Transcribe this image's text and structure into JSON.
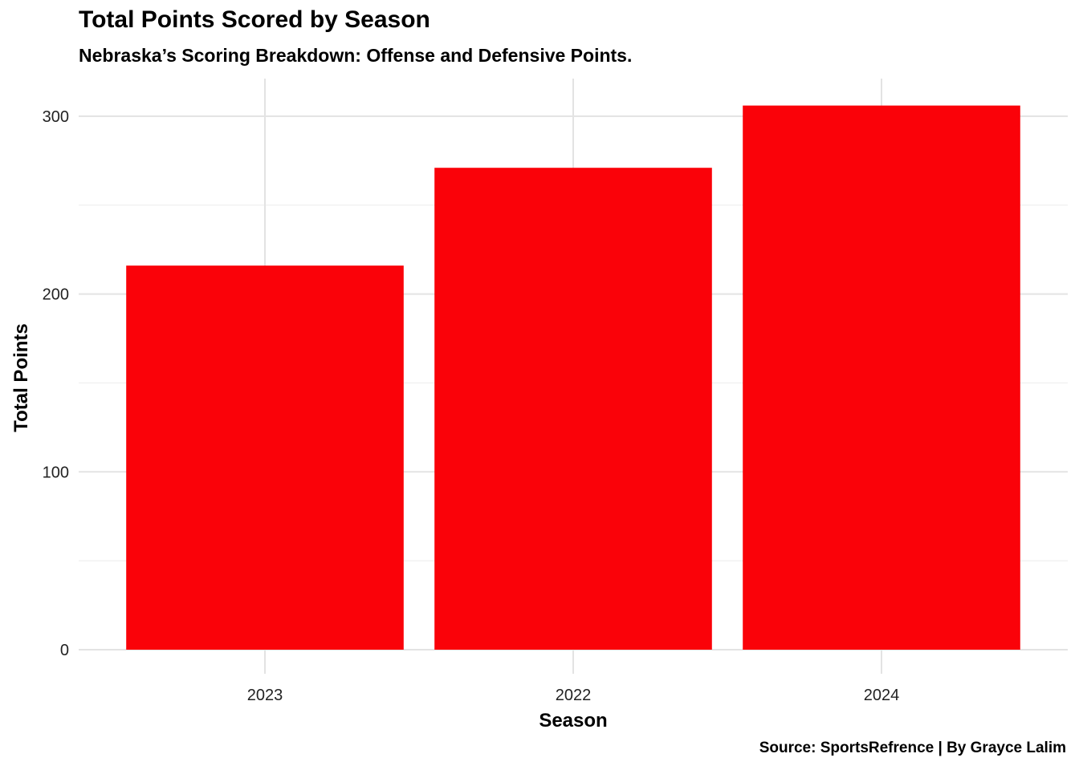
{
  "chart_data": {
    "type": "bar",
    "title": "Total Points Scored by Season",
    "subtitle": "Nebraska’s Scoring Breakdown: Offense and Defensive Points.",
    "caption": "Source: SportsRefrence | By Grayce Lalim",
    "xlabel": "Season",
    "ylabel": "Total Points",
    "categories": [
      "2023",
      "2022",
      "2024"
    ],
    "values": [
      216,
      271,
      306
    ],
    "ylim": [
      0,
      322
    ],
    "yticks": [
      0,
      100,
      200,
      300
    ],
    "grid": true,
    "bar_color": "#FA0209"
  }
}
